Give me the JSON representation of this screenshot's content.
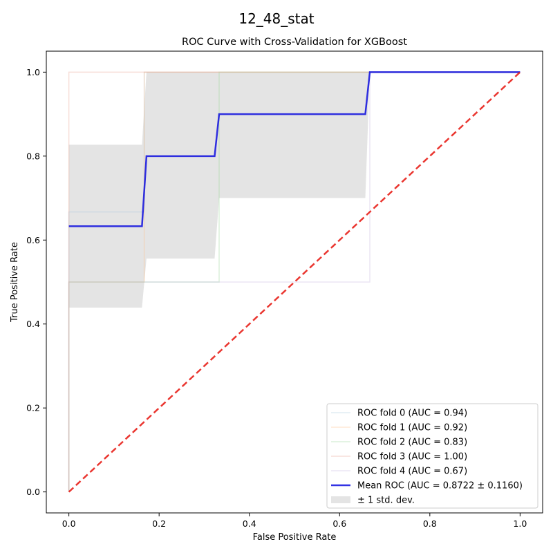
{
  "figure": {
    "suptitle": "12_48_stat"
  },
  "chart_data": {
    "type": "line",
    "title": "ROC Curve with Cross-Validation for XGBoost",
    "xlabel": "False Positive Rate",
    "ylabel": "True Positive Rate",
    "xlim": [
      -0.05,
      1.05
    ],
    "ylim": [
      -0.05,
      1.05
    ],
    "xticks": [
      "0.0",
      "0.2",
      "0.4",
      "0.6",
      "0.8",
      "1.0"
    ],
    "yticks": [
      "0.0",
      "0.2",
      "0.4",
      "0.6",
      "0.8",
      "1.0"
    ],
    "grid": false,
    "legend_position": "lower-right",
    "series": [
      {
        "name": "ROC fold 0 (AUC = 0.94)",
        "color": "#a6c8dc",
        "opacity": 0.35,
        "x": [
          0,
          0,
          0.167,
          0.167,
          1
        ],
        "y": [
          0,
          0.667,
          0.667,
          1,
          1
        ]
      },
      {
        "name": "ROC fold 1 (AUC = 0.92)",
        "color": "#ffbf86",
        "opacity": 0.35,
        "x": [
          0,
          0,
          0.167,
          0.167,
          1
        ],
        "y": [
          0,
          0.5,
          0.5,
          1,
          1
        ]
      },
      {
        "name": "ROC fold 2 (AUC = 0.83)",
        "color": "#98d494",
        "opacity": 0.35,
        "x": [
          0,
          0,
          0.333,
          0.333,
          1
        ],
        "y": [
          0,
          0.5,
          0.5,
          1,
          1
        ]
      },
      {
        "name": "ROC fold 3 (AUC = 1.00)",
        "color": "#e8a090",
        "opacity": 0.35,
        "x": [
          0,
          0,
          1
        ],
        "y": [
          0,
          1,
          1
        ]
      },
      {
        "name": "ROC fold 4 (AUC = 0.67)",
        "color": "#c6b8e0",
        "opacity": 0.35,
        "x": [
          0,
          0,
          0.667,
          0.667,
          1
        ],
        "y": [
          0,
          0.5,
          0.5,
          1,
          1
        ]
      },
      {
        "name": "Mean ROC (AUC = 0.8722 ± 0.1160)",
        "color": "#0000dd",
        "opacity": 0.8,
        "width": 2.5,
        "x": [
          0,
          0.162,
          0.172,
          0.323,
          0.333,
          0.657,
          0.667,
          1
        ],
        "y": [
          0.633,
          0.633,
          0.8,
          0.8,
          0.9,
          0.9,
          1.0,
          1.0
        ]
      }
    ],
    "band": {
      "name": "± 1 std. dev.",
      "color": "#bbbbbb",
      "opacity": 0.4,
      "x": [
        0,
        0.162,
        0.172,
        0.323,
        0.333,
        0.657,
        0.667,
        1
      ],
      "upper": [
        0.827,
        0.827,
        1.0,
        1.0,
        1.0,
        1.0,
        1.0,
        1.0
      ],
      "lower": [
        0.439,
        0.439,
        0.556,
        0.556,
        0.7,
        0.7,
        1.0,
        1.0
      ]
    },
    "chance": {
      "color": "#e8201a",
      "x": [
        0,
        1
      ],
      "y": [
        0,
        1
      ]
    }
  }
}
